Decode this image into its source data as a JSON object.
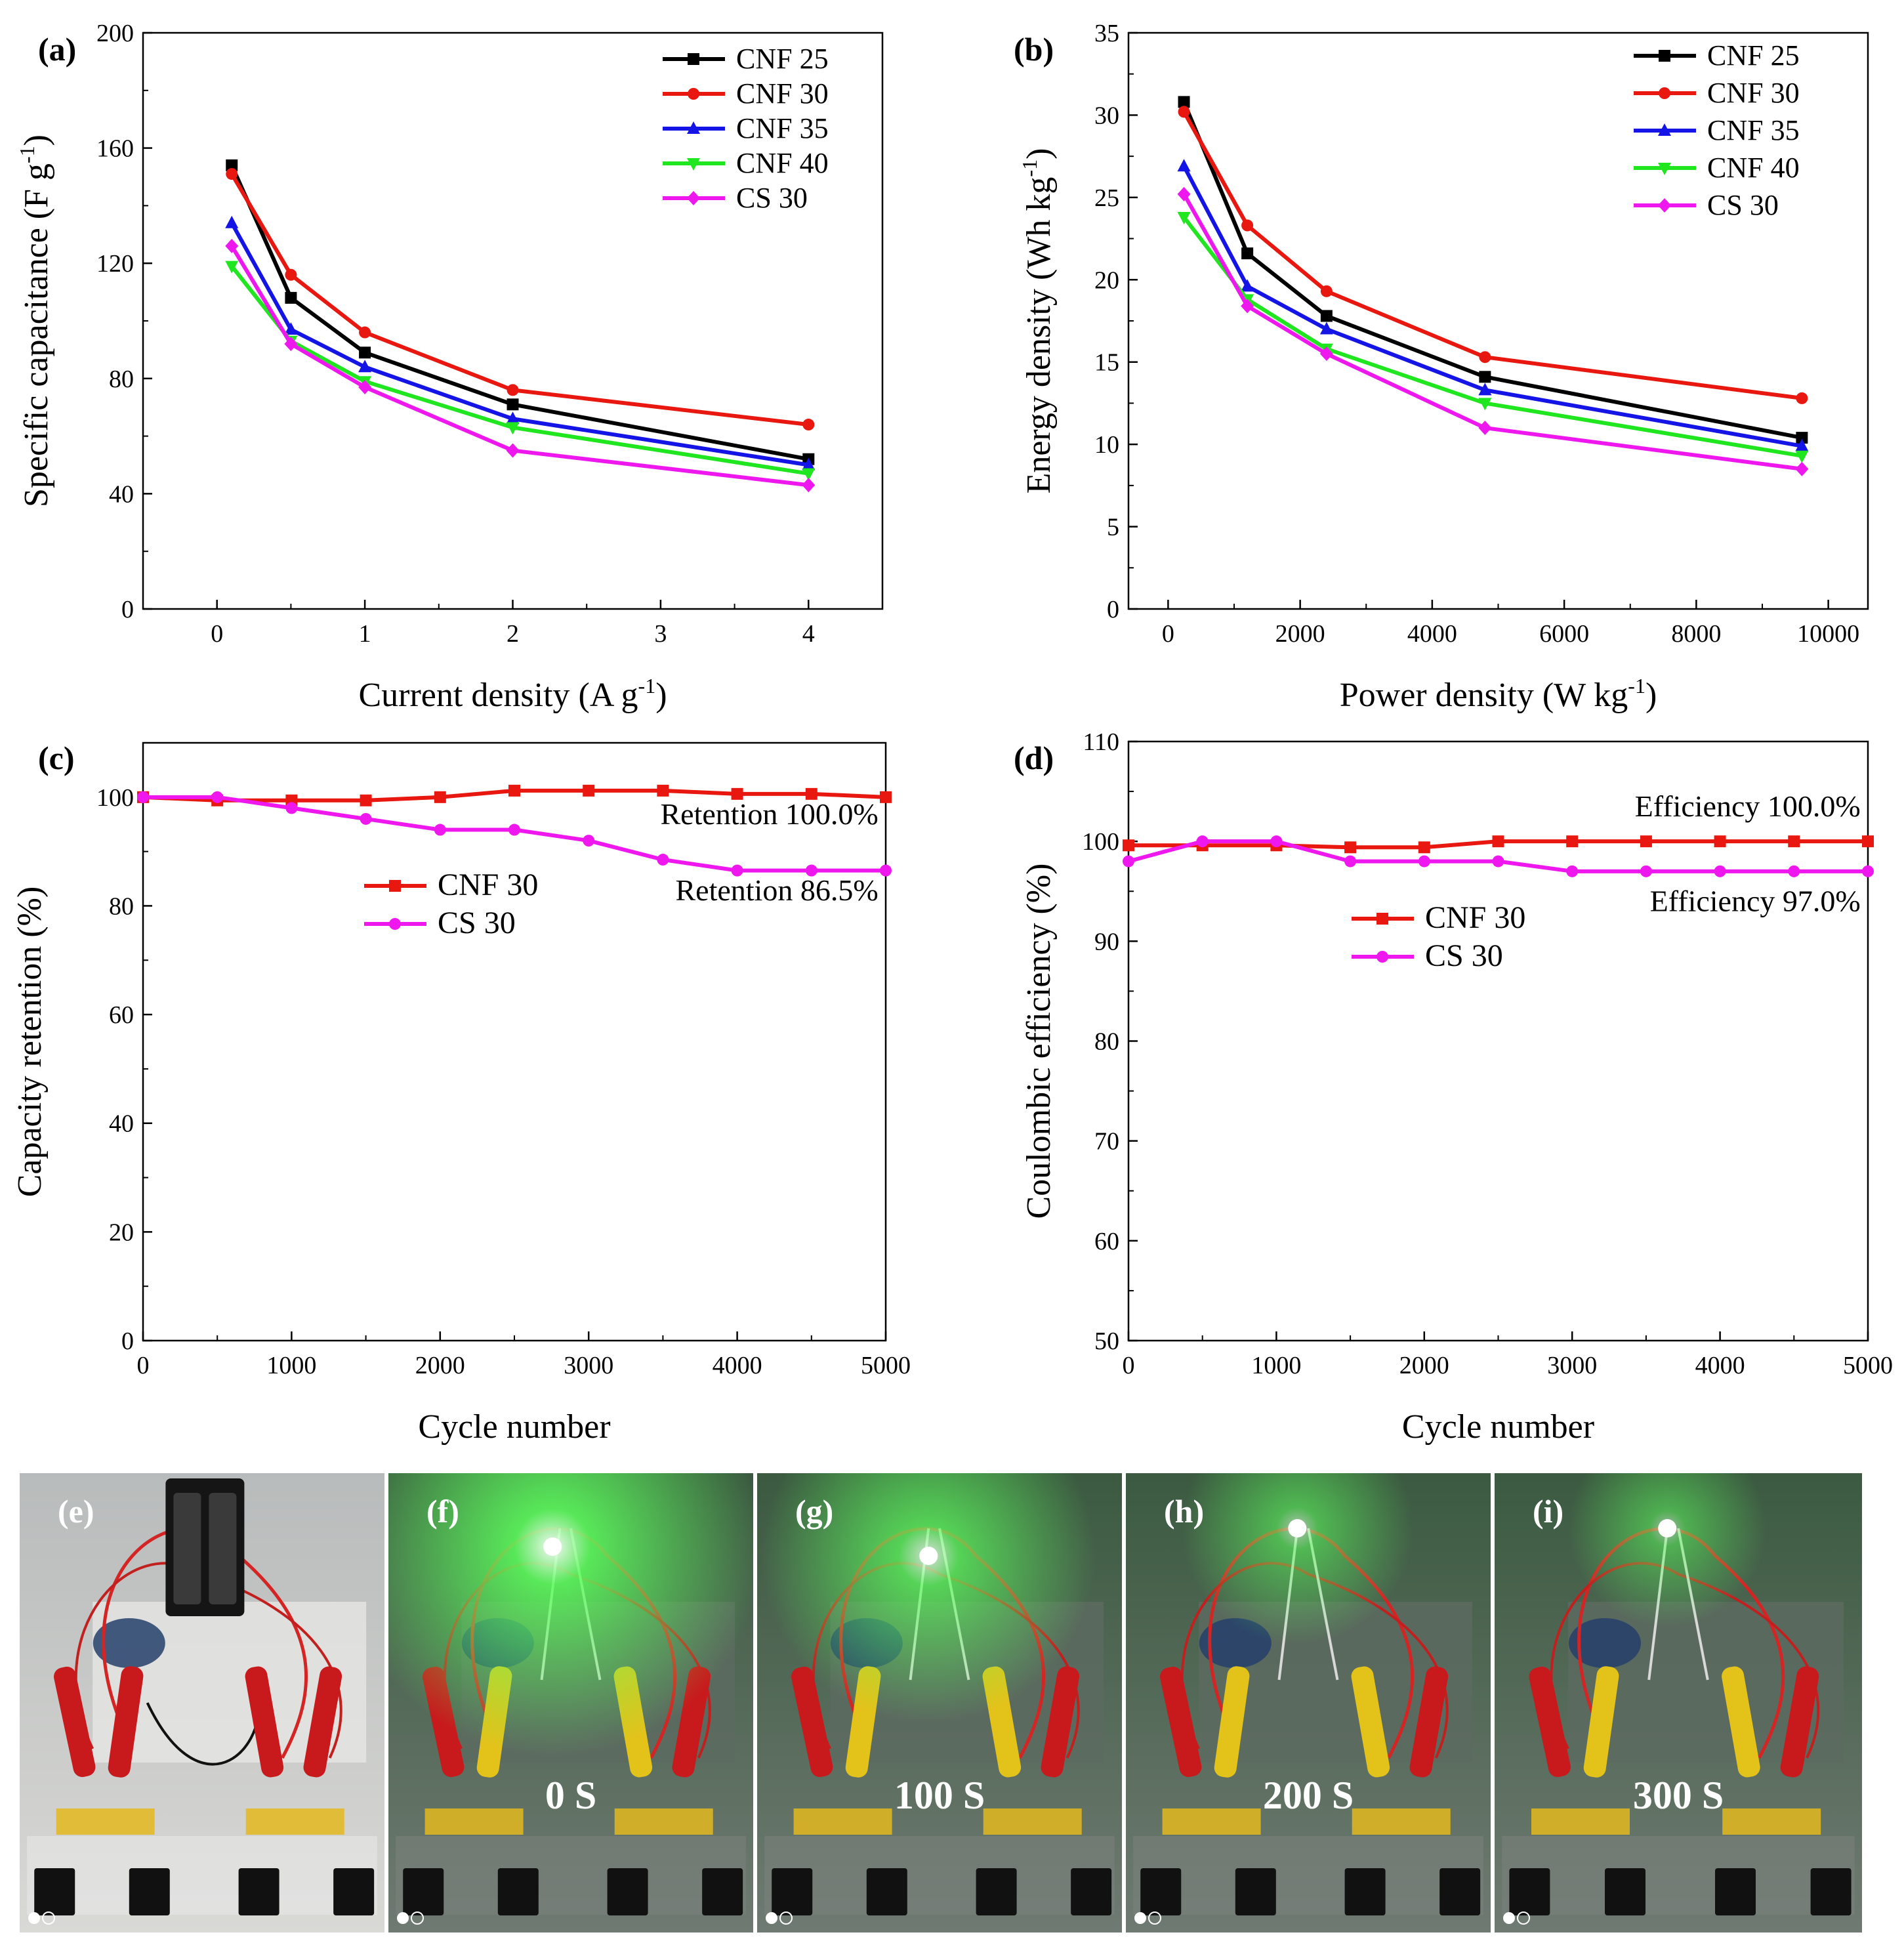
{
  "colors": {
    "CNF 25": "#000000",
    "CNF 30": "#e8170f",
    "CNF 35": "#1414e6",
    "CNF 40": "#1fe61f",
    "CS 30": "#ee17ee",
    "led": "#5cff5c"
  },
  "chart_data": [
    {
      "panel": "(a)",
      "type": "line",
      "xlabel": "Current density (A g",
      "xlabel_sup": "-1",
      "xlabel_end": ")",
      "ylabel": "Specific capacitance (F g",
      "ylabel_sup": "-1",
      "ylabel_end": ")",
      "xlim": [
        -0.5,
        4.5
      ],
      "ylim": [
        0,
        200
      ],
      "xticks": [
        0,
        1,
        2,
        3,
        4
      ],
      "yticks": [
        0,
        40,
        80,
        120,
        160,
        200
      ],
      "legend": "top-right",
      "x": [
        0.1,
        0.5,
        1,
        2,
        4
      ],
      "series": [
        {
          "name": "CNF 25",
          "marker": "square",
          "values": [
            154,
            108,
            89,
            71,
            52
          ]
        },
        {
          "name": "CNF 30",
          "marker": "circle",
          "values": [
            151,
            116,
            96,
            76,
            64
          ]
        },
        {
          "name": "CNF 35",
          "marker": "triangle-up",
          "values": [
            134,
            97,
            84,
            66,
            50
          ]
        },
        {
          "name": "CNF 40",
          "marker": "triangle-down",
          "values": [
            119,
            93,
            79,
            63,
            47
          ]
        },
        {
          "name": "CS 30",
          "marker": "diamond",
          "values": [
            126,
            92,
            77,
            55,
            43
          ]
        }
      ]
    },
    {
      "panel": "(b)",
      "type": "line",
      "xlabel": "Power density (W kg",
      "xlabel_sup": "-1",
      "xlabel_end": ")",
      "ylabel": "Energy density (Wh kg",
      "ylabel_sup": "-1",
      "ylabel_end": ")",
      "xlim": [
        -600,
        10600
      ],
      "ylim": [
        0,
        35
      ],
      "xticks": [
        0,
        2000,
        4000,
        6000,
        8000,
        10000
      ],
      "yticks": [
        0,
        5,
        10,
        15,
        20,
        25,
        30,
        35
      ],
      "legend": "top-right",
      "x": [
        240,
        1200,
        2400,
        4800,
        9600
      ],
      "series": [
        {
          "name": "CNF 25",
          "marker": "square",
          "values": [
            30.8,
            21.6,
            17.8,
            14.1,
            10.4
          ]
        },
        {
          "name": "CNF 30",
          "marker": "circle",
          "values": [
            30.2,
            23.3,
            19.3,
            15.3,
            12.8
          ]
        },
        {
          "name": "CNF 35",
          "marker": "triangle-up",
          "values": [
            26.9,
            19.6,
            17.0,
            13.3,
            9.9
          ]
        },
        {
          "name": "CNF 40",
          "marker": "triangle-down",
          "values": [
            23.8,
            18.8,
            15.8,
            12.5,
            9.3
          ]
        },
        {
          "name": "CS 30",
          "marker": "diamond",
          "values": [
            25.2,
            18.4,
            15.5,
            11.0,
            8.5
          ]
        }
      ]
    },
    {
      "panel": "(c)",
      "type": "line",
      "xlabel": "Cycle number",
      "ylabel": "Capacity retention (%)",
      "xlim": [
        0,
        5000
      ],
      "ylim": [
        0,
        110
      ],
      "xticks": [
        0,
        1000,
        2000,
        3000,
        4000,
        5000
      ],
      "yticks": [
        0,
        20,
        40,
        60,
        80,
        100
      ],
      "legend": "center",
      "x": [
        0,
        500,
        1000,
        1500,
        2000,
        2500,
        3000,
        3500,
        4000,
        4500,
        5000
      ],
      "series": [
        {
          "name": "CNF 30",
          "marker": "square",
          "values": [
            100,
            99.4,
            99.4,
            99.4,
            100,
            101.2,
            101.2,
            101.2,
            100.6,
            100.6,
            100
          ]
        },
        {
          "name": "CS 30",
          "marker": "circle",
          "values": [
            100,
            100,
            98,
            96,
            94,
            94,
            92,
            88.5,
            86.5,
            86.5,
            86.5
          ]
        }
      ],
      "annotations": [
        {
          "text": "Retention 100.0%",
          "x": 4950,
          "y": 95
        },
        {
          "text": "Retention 86.5%",
          "x": 4950,
          "y": 81
        }
      ]
    },
    {
      "panel": "(d)",
      "type": "line",
      "xlabel": "Cycle number",
      "ylabel": "Coulombic efficiency (%)",
      "xlim": [
        0,
        5000
      ],
      "ylim": [
        50,
        110
      ],
      "xticks": [
        0,
        1000,
        2000,
        3000,
        4000,
        5000
      ],
      "yticks": [
        50,
        60,
        70,
        80,
        90,
        100,
        110
      ],
      "legend": "center",
      "x": [
        0,
        500,
        1000,
        1500,
        2000,
        2500,
        3000,
        3500,
        4000,
        4500,
        5000
      ],
      "series": [
        {
          "name": "CNF 30",
          "marker": "square",
          "values": [
            99.6,
            99.6,
            99.6,
            99.4,
            99.4,
            100,
            100,
            100,
            100,
            100,
            100
          ]
        },
        {
          "name": "CS 30",
          "marker": "circle",
          "values": [
            98,
            100,
            100,
            98,
            98,
            98,
            97,
            97,
            97,
            97,
            97
          ]
        }
      ],
      "annotations": [
        {
          "text": "Efficiency 100.0%",
          "x": 4950,
          "y": 102.5
        },
        {
          "text": "Efficiency 97.0%",
          "x": 4950,
          "y": 93
        }
      ]
    }
  ],
  "photos": [
    {
      "panel": "(e)",
      "caption": "",
      "led": false,
      "led_level": 0
    },
    {
      "panel": "(f)",
      "caption": "0 S",
      "led": true,
      "led_level": 1.0
    },
    {
      "panel": "(g)",
      "caption": "100 S",
      "led": true,
      "led_level": 0.75
    },
    {
      "panel": "(h)",
      "caption": "200 S",
      "led": true,
      "led_level": 0.45
    },
    {
      "panel": "(i)",
      "caption": "300 S",
      "led": true,
      "led_level": 0.35
    }
  ]
}
